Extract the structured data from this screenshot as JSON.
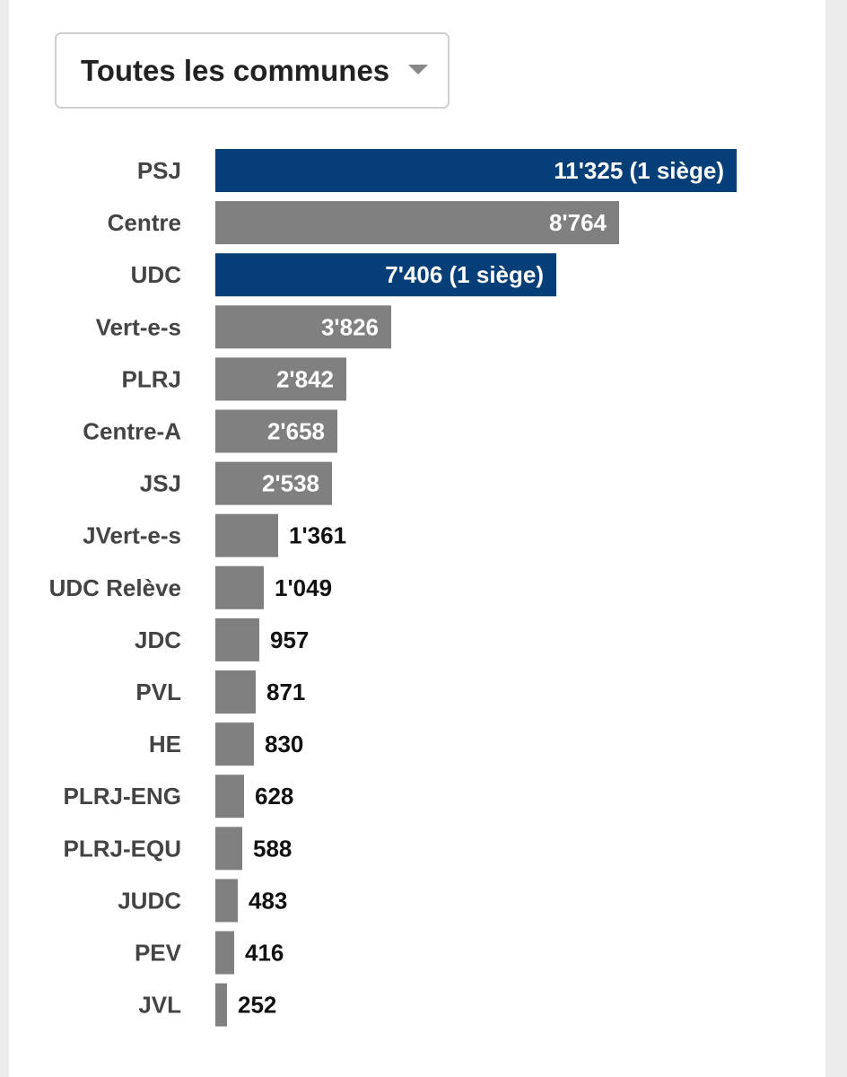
{
  "filter": {
    "selected": "Toutes les communes"
  },
  "colors": {
    "elected": "#063f78",
    "other": "#808080",
    "label": "#444444",
    "inside_text": "#ffffff",
    "outside_text": "#111111"
  },
  "chart_data": {
    "type": "bar",
    "orientation": "horizontal",
    "title": "",
    "xlabel": "",
    "ylabel": "",
    "xlim": [
      0,
      11325
    ],
    "grid": false,
    "categories": [
      "PSJ",
      "Centre",
      "UDC",
      "Vert-e-s",
      "PLRJ",
      "Centre-A",
      "JSJ",
      "JVert-e-s",
      "UDC Relève",
      "JDC",
      "PVL",
      "HE",
      "PLRJ-ENG",
      "PLRJ-EQU",
      "JUDC",
      "PEV",
      "JVL"
    ],
    "values": [
      11325,
      8764,
      7406,
      3826,
      2842,
      2658,
      2538,
      1361,
      1049,
      957,
      871,
      830,
      628,
      588,
      483,
      416,
      252
    ],
    "value_labels": [
      "11'325 (1 siège)",
      "8'764",
      "7'406 (1 siège)",
      "3'826",
      "2'842",
      "2'658",
      "2'538",
      "1'361",
      "1'049",
      "957",
      "871",
      "830",
      "628",
      "588",
      "483",
      "416",
      "252"
    ],
    "elected": [
      true,
      false,
      true,
      false,
      false,
      false,
      false,
      false,
      false,
      false,
      false,
      false,
      false,
      false,
      false,
      false,
      false
    ]
  }
}
